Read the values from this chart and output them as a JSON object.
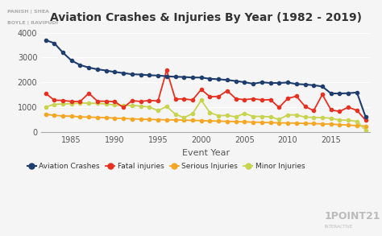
{
  "title": "Aviation Crashes & Injuries By Year (1982 - 2019)",
  "xlabel": "Event Year",
  "ylabel": "",
  "years": [
    1982,
    1983,
    1984,
    1985,
    1986,
    1987,
    1988,
    1989,
    1990,
    1991,
    1992,
    1993,
    1994,
    1995,
    1996,
    1997,
    1998,
    1999,
    2000,
    2001,
    2002,
    2003,
    2004,
    2005,
    2006,
    2007,
    2008,
    2009,
    2010,
    2011,
    2012,
    2013,
    2014,
    2015,
    2016,
    2017,
    2018,
    2019
  ],
  "aviation_crashes": [
    3700,
    3580,
    3200,
    2880,
    2700,
    2600,
    2530,
    2480,
    2420,
    2380,
    2330,
    2320,
    2290,
    2280,
    2250,
    2230,
    2220,
    2200,
    2200,
    2150,
    2130,
    2100,
    2060,
    2010,
    1950,
    2010,
    1980,
    1980,
    2000,
    1940,
    1920,
    1890,
    1840,
    1560,
    1560,
    1570,
    1600,
    620
  ],
  "fatal_injuries": [
    1570,
    1290,
    1280,
    1240,
    1240,
    1570,
    1250,
    1250,
    1230,
    1000,
    1270,
    1240,
    1280,
    1260,
    2490,
    1340,
    1340,
    1300,
    1720,
    1430,
    1440,
    1670,
    1350,
    1310,
    1350,
    1300,
    1310,
    1000,
    1360,
    1450,
    1040,
    870,
    1520,
    900,
    840,
    1010,
    880,
    490
  ],
  "serious_injuries": [
    730,
    680,
    660,
    650,
    620,
    610,
    600,
    590,
    570,
    560,
    540,
    530,
    520,
    510,
    500,
    500,
    490,
    480,
    470,
    460,
    450,
    440,
    430,
    420,
    410,
    400,
    390,
    380,
    375,
    370,
    360,
    350,
    340,
    330,
    310,
    290,
    270,
    250
  ],
  "minor_injuries": [
    1020,
    1120,
    1140,
    1150,
    1180,
    1170,
    1160,
    1140,
    1100,
    1080,
    1080,
    1050,
    1020,
    870,
    1040,
    730,
    590,
    750,
    1290,
    790,
    670,
    680,
    620,
    760,
    640,
    640,
    620,
    520,
    700,
    700,
    610,
    600,
    590,
    570,
    490,
    490,
    440,
    90
  ],
  "crash_color": "#1f3e6e",
  "fatal_color": "#e83020",
  "serious_color": "#f5a623",
  "minor_color": "#c8d44e",
  "bg_color": "#f5f5f5",
  "ylim": [
    0,
    4200
  ],
  "yticks": [
    0,
    1000,
    2000,
    3000,
    4000
  ]
}
